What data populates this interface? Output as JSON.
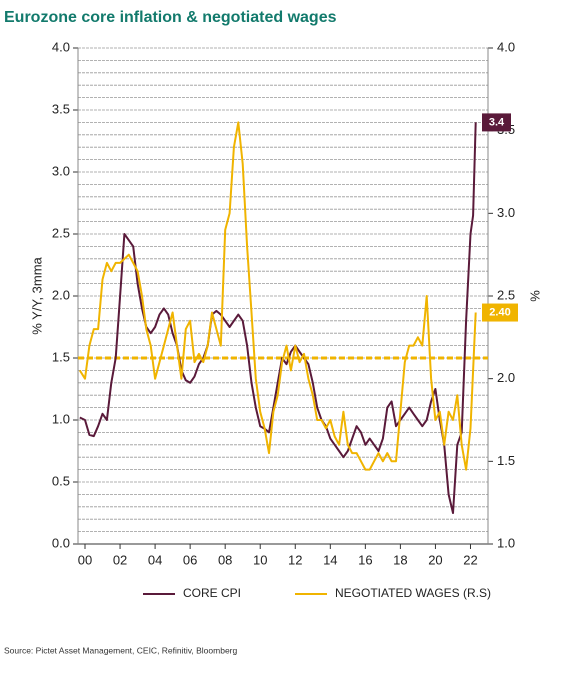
{
  "chart_data": {
    "type": "line",
    "title": "Eurozone core inflation & negotiated wages",
    "y_label": "% Y/Y, 3mma",
    "y2_label": "%",
    "source": "Source: Pictet Asset Management, CEIC, Refinitiv, Bloomberg",
    "xlim": [
      -0.4,
      23
    ],
    "ylim": [
      0,
      4
    ],
    "y2lim": [
      1,
      4
    ],
    "xticks": [
      {
        "value": 0,
        "label": "00"
      },
      {
        "value": 2,
        "label": "02"
      },
      {
        "value": 4,
        "label": "04"
      },
      {
        "value": 6,
        "label": "06"
      },
      {
        "value": 8,
        "label": "08"
      },
      {
        "value": 10,
        "label": "10"
      },
      {
        "value": 12,
        "label": "12"
      },
      {
        "value": 14,
        "label": "14"
      },
      {
        "value": 16,
        "label": "16"
      },
      {
        "value": 18,
        "label": "18"
      },
      {
        "value": 20,
        "label": "20"
      },
      {
        "value": 22,
        "label": "22"
      }
    ],
    "yticks": [
      {
        "value": 0,
        "label": "0.0"
      },
      0.5,
      {
        "value": 1,
        "label": "1.0"
      },
      1.5,
      {
        "value": 2,
        "label": "2.0"
      },
      2.5,
      {
        "value": 3,
        "label": "3.0"
      },
      3.5,
      {
        "value": 4,
        "label": "4.0"
      }
    ],
    "y2ticks": [
      {
        "value": 1,
        "label": "1.0"
      },
      1.5,
      {
        "value": 2,
        "label": "2.0"
      },
      2.5,
      {
        "value": 3,
        "label": "3.0"
      },
      3.5,
      {
        "value": 4,
        "label": "4.0"
      }
    ],
    "grid": true,
    "grid_step": 0.1,
    "reference_line": {
      "value": 1.5,
      "color": "#f0b400"
    },
    "series": [
      {
        "name": "CORE CPI",
        "color": "#5a1a3a",
        "end_label": "3.4",
        "x": [
          -0.3,
          0,
          0.25,
          0.5,
          0.75,
          1,
          1.25,
          1.5,
          1.75,
          2,
          2.25,
          2.5,
          2.75,
          3,
          3.25,
          3.5,
          3.75,
          4,
          4.25,
          4.5,
          4.75,
          5,
          5.25,
          5.5,
          5.75,
          6,
          6.25,
          6.5,
          6.75,
          7,
          7.25,
          7.5,
          7.75,
          8,
          8.25,
          8.5,
          8.75,
          9,
          9.25,
          9.5,
          9.75,
          10,
          10.25,
          10.5,
          10.75,
          11,
          11.25,
          11.5,
          11.75,
          12,
          12.25,
          12.5,
          12.75,
          13,
          13.25,
          13.5,
          13.75,
          14,
          14.25,
          14.5,
          14.75,
          15,
          15.25,
          15.5,
          15.75,
          16,
          16.25,
          16.5,
          16.75,
          17,
          17.25,
          17.5,
          17.75,
          18,
          18.25,
          18.5,
          18.75,
          19,
          19.25,
          19.5,
          19.75,
          20,
          20.25,
          20.5,
          20.75,
          21,
          21.25,
          21.5,
          21.75,
          22,
          22.15,
          22.3
        ],
        "values": [
          1.02,
          1.0,
          0.88,
          0.87,
          0.95,
          1.05,
          1.0,
          1.3,
          1.5,
          2.0,
          2.5,
          2.45,
          2.4,
          2.1,
          1.9,
          1.75,
          1.7,
          1.75,
          1.85,
          1.9,
          1.85,
          1.7,
          1.6,
          1.4,
          1.32,
          1.3,
          1.35,
          1.45,
          1.5,
          1.6,
          1.85,
          1.88,
          1.85,
          1.8,
          1.75,
          1.8,
          1.85,
          1.8,
          1.6,
          1.3,
          1.1,
          0.95,
          0.93,
          0.9,
          1.1,
          1.3,
          1.5,
          1.45,
          1.55,
          1.6,
          1.55,
          1.5,
          1.45,
          1.3,
          1.1,
          1.0,
          0.95,
          0.85,
          0.8,
          0.75,
          0.7,
          0.75,
          0.85,
          0.95,
          0.9,
          0.8,
          0.85,
          0.8,
          0.75,
          0.85,
          1.1,
          1.15,
          0.95,
          1.0,
          1.05,
          1.1,
          1.05,
          1.0,
          0.95,
          1.0,
          1.15,
          1.25,
          1.0,
          0.8,
          0.4,
          0.25,
          0.8,
          0.9,
          1.8,
          2.5,
          2.65,
          3.4
        ]
      },
      {
        "name": "NEGOTIATED WAGES (R.S)",
        "color": "#f0b400",
        "axis": "y2",
        "end_label": "2.40",
        "x": [
          -0.3,
          0,
          0.25,
          0.5,
          0.75,
          1,
          1.25,
          1.5,
          1.75,
          2,
          2.5,
          2.75,
          3,
          3.25,
          3.5,
          3.75,
          4,
          4.25,
          4.5,
          4.75,
          5,
          5.25,
          5.5,
          5.75,
          6,
          6.25,
          6.5,
          6.75,
          7,
          7.25,
          7.5,
          7.75,
          8,
          8.25,
          8.5,
          8.75,
          9,
          9.25,
          9.5,
          9.75,
          10,
          10.25,
          10.5,
          10.75,
          11,
          11.25,
          11.5,
          11.75,
          12,
          12.25,
          12.5,
          12.75,
          13,
          13.25,
          13.5,
          13.75,
          14,
          14.25,
          14.5,
          14.75,
          15,
          15.25,
          15.5,
          15.75,
          16,
          16.25,
          16.5,
          16.75,
          17,
          17.25,
          17.5,
          17.75,
          18,
          18.25,
          18.5,
          18.75,
          19,
          19.25,
          19.5,
          19.75,
          20,
          20.25,
          20.5,
          20.75,
          21,
          21.25,
          21.5,
          21.75,
          22,
          22.3
        ],
        "values": [
          2.05,
          2.0,
          2.2,
          2.3,
          2.3,
          2.6,
          2.7,
          2.65,
          2.7,
          2.7,
          2.75,
          2.7,
          2.65,
          2.5,
          2.3,
          2.2,
          2.0,
          2.1,
          2.2,
          2.3,
          2.4,
          2.2,
          2.0,
          2.3,
          2.35,
          2.1,
          2.15,
          2.1,
          2.2,
          2.4,
          2.3,
          2.2,
          2.9,
          3.0,
          3.4,
          3.55,
          3.3,
          2.8,
          2.4,
          2.0,
          1.8,
          1.7,
          1.55,
          1.8,
          1.9,
          2.1,
          2.2,
          2.05,
          2.2,
          2.1,
          2.15,
          2.0,
          1.9,
          1.75,
          1.75,
          1.7,
          1.75,
          1.65,
          1.6,
          1.8,
          1.6,
          1.55,
          1.55,
          1.5,
          1.45,
          1.45,
          1.5,
          1.55,
          1.5,
          1.55,
          1.5,
          1.5,
          1.8,
          2.1,
          2.2,
          2.2,
          2.25,
          2.2,
          2.5,
          2.0,
          1.75,
          1.8,
          1.6,
          1.8,
          1.75,
          1.9,
          1.6,
          1.45,
          1.7,
          2.4
        ]
      }
    ]
  }
}
